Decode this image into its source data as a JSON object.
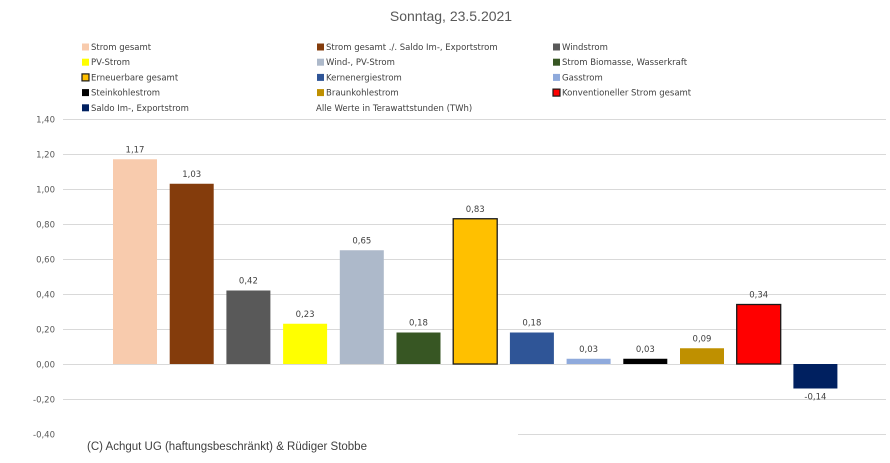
{
  "chart_data": {
    "type": "bar",
    "title": "Sonntag, 23.5.2021",
    "note": "Alle Werte in Terawattstunden (TWh)",
    "footer": "(C) Achgut UG (haftungsbeschränkt) & Rüdiger Stobbe",
    "xlabel": "",
    "ylabel": "",
    "ylim": [
      -0.4,
      1.4
    ],
    "ytick_step": 0.2,
    "ytick_labels": [
      "-0,40",
      "-0,20",
      "0,00",
      "0,20",
      "0,40",
      "0,60",
      "0,80",
      "1,00",
      "1,20",
      "1,40"
    ],
    "grid": true,
    "legend_position": "top",
    "categories": [
      "Strom gesamt",
      "Strom gesamt ./. Saldo Im-, Exportstrom",
      "Windstrom",
      "PV-Strom",
      "Wind-, PV-Strom",
      "Strom Biomasse, Wasserkraft",
      "Erneuerbare gesamt",
      "Kernenergiestrom",
      "Gasstrom",
      "Steinkohlestrom",
      "Braunkohlestrom",
      "Konventioneller Strom gesamt",
      "Saldo Im-, Exportstrom"
    ],
    "values": [
      1.17,
      1.03,
      0.42,
      0.23,
      0.65,
      0.18,
      0.83,
      0.18,
      0.03,
      0.03,
      0.09,
      0.34,
      -0.14
    ],
    "value_labels": [
      "1,17",
      "1,03",
      "0,42",
      "0,23",
      "0,65",
      "0,18",
      "0,83",
      "0,18",
      "0,03",
      "0,03",
      "0,09",
      "0,34",
      "-0,14"
    ],
    "colors": [
      "#f8cbad",
      "#843c0c",
      "#595959",
      "#ffff00",
      "#adb9ca",
      "#375623",
      "#ffc000",
      "#2f5597",
      "#8faadc",
      "#000000",
      "#bf9000",
      "#ff0000",
      "#002060"
    ],
    "outlined": [
      false,
      false,
      false,
      false,
      false,
      false,
      true,
      false,
      false,
      false,
      false,
      true,
      false
    ],
    "legend_order": [
      0,
      1,
      2,
      3,
      4,
      5,
      6,
      7,
      8,
      9,
      10,
      11,
      12
    ]
  }
}
